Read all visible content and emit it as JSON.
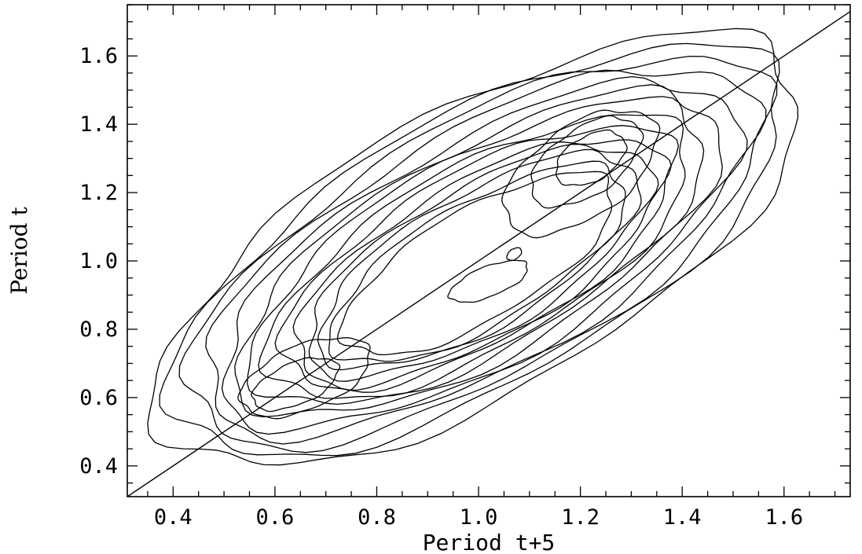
{
  "chart_data": {
    "type": "contour",
    "xlabel": "Period t+5",
    "ylabel": "Period t",
    "xlim": [
      0.31,
      1.73
    ],
    "ylim": [
      0.31,
      1.75
    ],
    "x_ticks": [
      0.4,
      0.6,
      0.8,
      1.0,
      1.2,
      1.4,
      1.6
    ],
    "y_ticks": [
      0.4,
      0.6,
      0.8,
      1.0,
      1.2,
      1.4,
      1.6
    ],
    "x_tick_labels": [
      "0.4",
      "0.6",
      "0.8",
      "1.0",
      "1.2",
      "1.4",
      "1.6"
    ],
    "y_tick_labels": [
      "0.4",
      "0.6",
      "0.8",
      "1.0",
      "1.2",
      "1.4",
      "1.6"
    ],
    "grid": false,
    "reference_line": {
      "from": [
        0.31,
        0.31
      ],
      "to": [
        1.73,
        1.73
      ]
    },
    "density_peaks": [
      {
        "x": 0.62,
        "y": 0.63
      },
      {
        "x": 1.02,
        "y": 0.94
      },
      {
        "x": 1.22,
        "y": 1.3
      }
    ],
    "contours": [
      {
        "center": [
          1.0,
          1.03
        ],
        "angle_deg": 45,
        "semi_axes": [
          0.82,
          0.36
        ]
      },
      {
        "center": [
          1.0,
          1.03
        ],
        "angle_deg": 45,
        "semi_axes": [
          0.78,
          0.34
        ]
      },
      {
        "center": [
          1.0,
          1.03
        ],
        "angle_deg": 45,
        "semi_axes": [
          0.74,
          0.32
        ]
      },
      {
        "center": [
          1.0,
          1.03
        ],
        "angle_deg": 45,
        "semi_axes": [
          0.7,
          0.3
        ]
      },
      {
        "center": [
          1.0,
          1.02
        ],
        "angle_deg": 45,
        "semi_axes": [
          0.66,
          0.28
        ]
      },
      {
        "center": [
          1.0,
          1.02
        ],
        "angle_deg": 45,
        "semi_axes": [
          0.62,
          0.26
        ]
      },
      {
        "center": [
          1.0,
          1.02
        ],
        "angle_deg": 45,
        "semi_axes": [
          0.58,
          0.245
        ]
      },
      {
        "center": [
          1.0,
          1.01
        ],
        "angle_deg": 45,
        "semi_axes": [
          0.54,
          0.23
        ]
      },
      {
        "center": [
          1.0,
          1.01
        ],
        "angle_deg": 45,
        "semi_axes": [
          0.5,
          0.215
        ]
      },
      {
        "center": [
          1.0,
          1.0
        ],
        "angle_deg": 45,
        "semi_axes": [
          0.47,
          0.2
        ]
      },
      {
        "center": [
          1.0,
          1.0
        ],
        "angle_deg": 45,
        "semi_axes": [
          0.44,
          0.185
        ]
      },
      {
        "center": [
          1.0,
          1.0
        ],
        "angle_deg": 45,
        "semi_axes": [
          0.41,
          0.17
        ]
      },
      {
        "center": [
          1.0,
          0.99
        ],
        "angle_deg": 45,
        "semi_axes": [
          0.38,
          0.155
        ]
      },
      {
        "center": [
          1.0,
          0.99
        ],
        "angle_deg": 45,
        "semi_axes": [
          0.35,
          0.14
        ]
      },
      {
        "center": [
          0.66,
          0.66
        ],
        "angle_deg": 40,
        "semi_axes": [
          0.15,
          0.085
        ]
      },
      {
        "center": [
          0.64,
          0.64
        ],
        "angle_deg": 40,
        "semi_axes": [
          0.1,
          0.055
        ]
      },
      {
        "center": [
          1.2,
          1.26
        ],
        "angle_deg": 55,
        "semi_axes": [
          0.21,
          0.11
        ]
      },
      {
        "center": [
          1.21,
          1.29
        ],
        "angle_deg": 55,
        "semi_axes": [
          0.15,
          0.08
        ]
      },
      {
        "center": [
          1.22,
          1.3
        ],
        "angle_deg": 55,
        "semi_axes": [
          0.09,
          0.055
        ]
      },
      {
        "center": [
          1.02,
          0.94
        ],
        "angle_deg": 35,
        "semi_axes": [
          0.09,
          0.04
        ]
      },
      {
        "center": [
          1.07,
          1.02
        ],
        "angle_deg": 60,
        "semi_axes": [
          0.02,
          0.012
        ]
      }
    ]
  }
}
